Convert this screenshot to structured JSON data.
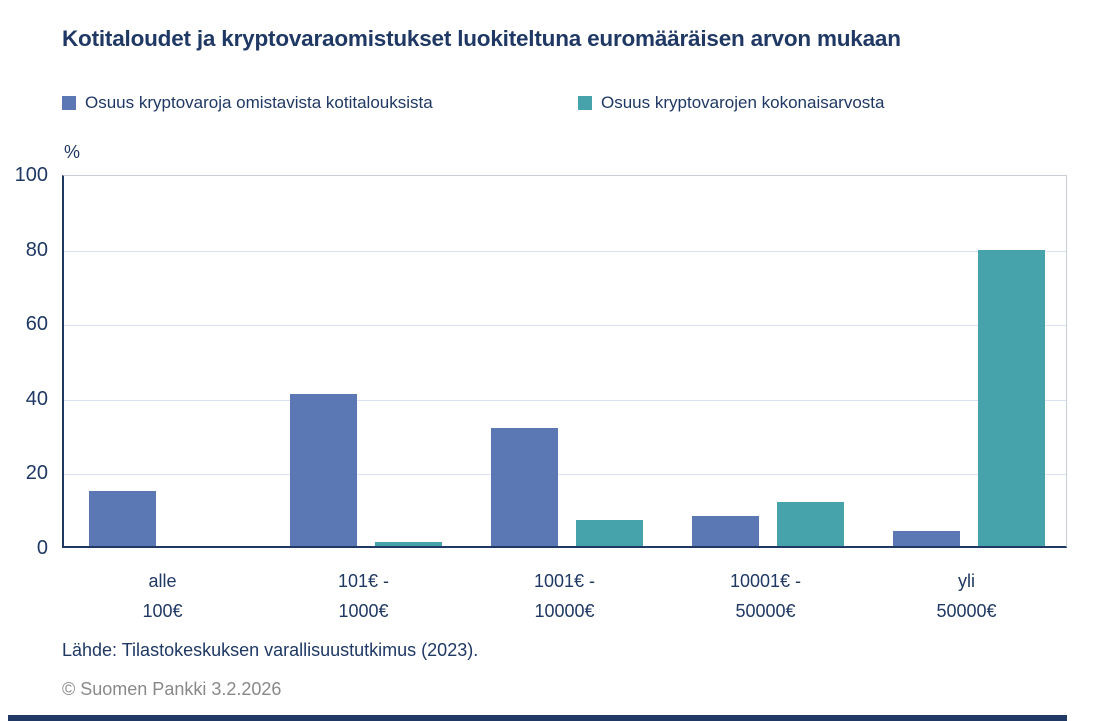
{
  "page": {
    "title": "Kotitaloudet ja kryptovaraomistukset luokiteltuna euromääräisen arvon mukaan",
    "source": "Lähde: Tilastokeskuksen varallisuustutkimus (2023).",
    "copyright": "© Suomen Pankki 3.2.2026"
  },
  "colors": {
    "navy_text": "#1F3864",
    "series1_blue": "#5B78B5",
    "series2_teal": "#46A3AC",
    "gridline": "#D9E1F2",
    "plot_border": "#C9CDD6",
    "copyright_gray": "#898989"
  },
  "chart_data": {
    "type": "bar",
    "title": "Kotitaloudet ja kryptovaraomistukset luokiteltuna euromääräisen arvon mukaan",
    "xlabel": "",
    "ylabel": "%",
    "ylim": [
      0,
      100
    ],
    "yticks": [
      0,
      20,
      40,
      60,
      80,
      100
    ],
    "grid": true,
    "legend_position": "top",
    "categories": [
      [
        "alle",
        "100€"
      ],
      [
        "101€ -",
        "1000€"
      ],
      [
        "1001€ -",
        "10000€"
      ],
      [
        "10001€ -",
        "50000€"
      ],
      [
        "yli",
        "50000€"
      ]
    ],
    "series": [
      {
        "name": "Osuus kryptovaroja omistavista kotitalouksista",
        "color": "#5B78B5",
        "values": [
          15,
          41,
          32,
          8,
          4
        ]
      },
      {
        "name": "Osuus kryptovarojen kokonaisarvosta",
        "color": "#46A3AC",
        "values": [
          0,
          1,
          7,
          12,
          80
        ]
      }
    ]
  }
}
